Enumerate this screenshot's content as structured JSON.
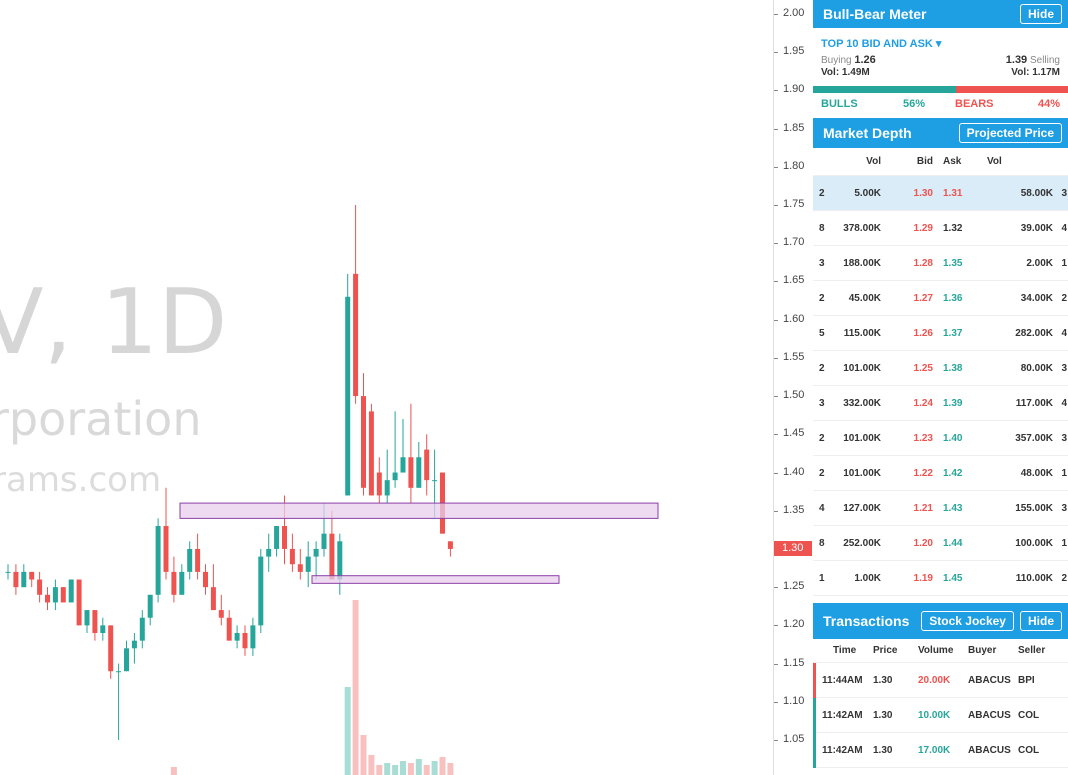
{
  "chart": {
    "watermark_title": "V, 1D",
    "watermark_subtitle": "rporation",
    "watermark_url": "rams.com",
    "last_price_marker": "1.30",
    "colors": {
      "up": "#26a69a",
      "down": "#ef5350",
      "up_volume": "#a8ddd6",
      "down_volume": "#f8c1c0",
      "zone_fill": "#e8cfec",
      "zone_border": "#8b3fa8"
    },
    "price_axis": [
      "2.00",
      "1.95",
      "1.90",
      "1.85",
      "1.80",
      "1.75",
      "1.70",
      "1.65",
      "1.60",
      "1.55",
      "1.50",
      "1.45",
      "1.40",
      "1.35",
      "1.30",
      "1.25",
      "1.20",
      "1.15",
      "1.10",
      "1.05"
    ]
  },
  "chart_data": {
    "type": "candlestick",
    "price_range": [
      1.05,
      2.0
    ],
    "candles": [
      {
        "o": 1.27,
        "h": 1.28,
        "l": 1.26,
        "c": 1.27
      },
      {
        "o": 1.27,
        "h": 1.28,
        "l": 1.24,
        "c": 1.25
      },
      {
        "o": 1.25,
        "h": 1.28,
        "l": 1.25,
        "c": 1.27
      },
      {
        "o": 1.27,
        "h": 1.27,
        "l": 1.25,
        "c": 1.26
      },
      {
        "o": 1.26,
        "h": 1.27,
        "l": 1.23,
        "c": 1.24
      },
      {
        "o": 1.24,
        "h": 1.25,
        "l": 1.22,
        "c": 1.23
      },
      {
        "o": 1.23,
        "h": 1.26,
        "l": 1.22,
        "c": 1.25
      },
      {
        "o": 1.25,
        "h": 1.25,
        "l": 1.23,
        "c": 1.23
      },
      {
        "o": 1.23,
        "h": 1.26,
        "l": 1.23,
        "c": 1.26
      },
      {
        "o": 1.26,
        "h": 1.26,
        "l": 1.2,
        "c": 1.2
      },
      {
        "o": 1.2,
        "h": 1.22,
        "l": 1.19,
        "c": 1.22
      },
      {
        "o": 1.22,
        "h": 1.22,
        "l": 1.18,
        "c": 1.19
      },
      {
        "o": 1.19,
        "h": 1.21,
        "l": 1.18,
        "c": 1.2
      },
      {
        "o": 1.2,
        "h": 1.2,
        "l": 1.13,
        "c": 1.14
      },
      {
        "o": 1.14,
        "h": 1.15,
        "l": 1.05,
        "c": 1.14
      },
      {
        "o": 1.14,
        "h": 1.18,
        "l": 1.14,
        "c": 1.17
      },
      {
        "o": 1.17,
        "h": 1.19,
        "l": 1.15,
        "c": 1.18
      },
      {
        "o": 1.18,
        "h": 1.22,
        "l": 1.17,
        "c": 1.21
      },
      {
        "o": 1.21,
        "h": 1.24,
        "l": 1.2,
        "c": 1.24
      },
      {
        "o": 1.24,
        "h": 1.34,
        "l": 1.23,
        "c": 1.33
      },
      {
        "o": 1.33,
        "h": 1.38,
        "l": 1.26,
        "c": 1.27
      },
      {
        "o": 1.27,
        "h": 1.29,
        "l": 1.23,
        "c": 1.24
      },
      {
        "o": 1.24,
        "h": 1.28,
        "l": 1.24,
        "c": 1.27
      },
      {
        "o": 1.27,
        "h": 1.31,
        "l": 1.26,
        "c": 1.3
      },
      {
        "o": 1.3,
        "h": 1.32,
        "l": 1.26,
        "c": 1.27
      },
      {
        "o": 1.27,
        "h": 1.28,
        "l": 1.24,
        "c": 1.25
      },
      {
        "o": 1.25,
        "h": 1.28,
        "l": 1.22,
        "c": 1.22
      },
      {
        "o": 1.22,
        "h": 1.24,
        "l": 1.2,
        "c": 1.21
      },
      {
        "o": 1.21,
        "h": 1.22,
        "l": 1.18,
        "c": 1.18
      },
      {
        "o": 1.18,
        "h": 1.2,
        "l": 1.17,
        "c": 1.19
      },
      {
        "o": 1.19,
        "h": 1.2,
        "l": 1.16,
        "c": 1.17
      },
      {
        "o": 1.17,
        "h": 1.21,
        "l": 1.16,
        "c": 1.2
      },
      {
        "o": 1.2,
        "h": 1.3,
        "l": 1.19,
        "c": 1.29
      },
      {
        "o": 1.29,
        "h": 1.32,
        "l": 1.27,
        "c": 1.3
      },
      {
        "o": 1.3,
        "h": 1.33,
        "l": 1.29,
        "c": 1.33
      },
      {
        "o": 1.33,
        "h": 1.37,
        "l": 1.28,
        "c": 1.3
      },
      {
        "o": 1.3,
        "h": 1.32,
        "l": 1.27,
        "c": 1.28
      },
      {
        "o": 1.28,
        "h": 1.3,
        "l": 1.26,
        "c": 1.27
      },
      {
        "o": 1.27,
        "h": 1.31,
        "l": 1.25,
        "c": 1.29
      },
      {
        "o": 1.29,
        "h": 1.31,
        "l": 1.26,
        "c": 1.3
      },
      {
        "o": 1.3,
        "h": 1.36,
        "l": 1.29,
        "c": 1.32
      },
      {
        "o": 1.32,
        "h": 1.35,
        "l": 1.26,
        "c": 1.26
      },
      {
        "o": 1.26,
        "h": 1.32,
        "l": 1.24,
        "c": 1.31
      },
      {
        "o": 1.37,
        "h": 1.66,
        "l": 1.37,
        "c": 1.63
      },
      {
        "o": 1.66,
        "h": 1.75,
        "l": 1.49,
        "c": 1.5
      },
      {
        "o": 1.5,
        "h": 1.53,
        "l": 1.37,
        "c": 1.38
      },
      {
        "o": 1.48,
        "h": 1.49,
        "l": 1.37,
        "c": 1.37
      },
      {
        "o": 1.4,
        "h": 1.42,
        "l": 1.36,
        "c": 1.37
      },
      {
        "o": 1.37,
        "h": 1.43,
        "l": 1.36,
        "c": 1.39
      },
      {
        "o": 1.39,
        "h": 1.48,
        "l": 1.38,
        "c": 1.4
      },
      {
        "o": 1.4,
        "h": 1.47,
        "l": 1.4,
        "c": 1.42
      },
      {
        "o": 1.42,
        "h": 1.49,
        "l": 1.36,
        "c": 1.38
      },
      {
        "o": 1.38,
        "h": 1.44,
        "l": 1.38,
        "c": 1.42
      },
      {
        "o": 1.43,
        "h": 1.45,
        "l": 1.37,
        "c": 1.39
      },
      {
        "o": 1.39,
        "h": 1.43,
        "l": 1.34,
        "c": 1.39
      },
      {
        "o": 1.4,
        "h": 1.4,
        "l": 1.32,
        "c": 1.32
      },
      {
        "o": 1.31,
        "h": 1.31,
        "l": 1.29,
        "c": 1.3
      }
    ],
    "zones": [
      {
        "top": 1.36,
        "bottom": 1.34
      },
      {
        "top": 1.265,
        "bottom": 1.255
      }
    ]
  },
  "bull_bear": {
    "title": "Bull-Bear Meter",
    "hide_label": "Hide",
    "dropdown_label": "TOP 10 BID AND ASK",
    "buying_label": "Buying",
    "buying_value": "1.26",
    "selling_value": "1.39",
    "selling_label": "Selling",
    "buy_vol": "Vol: 1.49M",
    "sell_vol": "Vol: 1.17M",
    "bulls_label": "BULLS",
    "bulls_pct": "56%",
    "bears_label": "BEARS",
    "bears_pct": "44%",
    "bulls_fraction": 0.56
  },
  "market_depth": {
    "title": "Market Depth",
    "projected_price_label": "Projected Price",
    "columns": {
      "vol": "Vol",
      "bid": "Bid",
      "ask": "Ask",
      "vol2": "Vol"
    },
    "rows": [
      {
        "n1": "2",
        "vol": "5.00K",
        "bid": "1.30",
        "ask": "1.31",
        "vol2": "58.00K",
        "n2": "3"
      },
      {
        "n1": "8",
        "vol": "378.00K",
        "bid": "1.29",
        "ask": "1.32",
        "vol2": "39.00K",
        "n2": "4"
      },
      {
        "n1": "3",
        "vol": "188.00K",
        "bid": "1.28",
        "ask": "1.35",
        "vol2": "2.00K",
        "n2": "1"
      },
      {
        "n1": "2",
        "vol": "45.00K",
        "bid": "1.27",
        "ask": "1.36",
        "vol2": "34.00K",
        "n2": "2"
      },
      {
        "n1": "5",
        "vol": "115.00K",
        "bid": "1.26",
        "ask": "1.37",
        "vol2": "282.00K",
        "n2": "4"
      },
      {
        "n1": "2",
        "vol": "101.00K",
        "bid": "1.25",
        "ask": "1.38",
        "vol2": "80.00K",
        "n2": "3"
      },
      {
        "n1": "3",
        "vol": "332.00K",
        "bid": "1.24",
        "ask": "1.39",
        "vol2": "117.00K",
        "n2": "4"
      },
      {
        "n1": "2",
        "vol": "101.00K",
        "bid": "1.23",
        "ask": "1.40",
        "vol2": "357.00K",
        "n2": "3"
      },
      {
        "n1": "2",
        "vol": "101.00K",
        "bid": "1.22",
        "ask": "1.42",
        "vol2": "48.00K",
        "n2": "1"
      },
      {
        "n1": "4",
        "vol": "127.00K",
        "bid": "1.21",
        "ask": "1.43",
        "vol2": "155.00K",
        "n2": "3"
      },
      {
        "n1": "8",
        "vol": "252.00K",
        "bid": "1.20",
        "ask": "1.44",
        "vol2": "100.00K",
        "n2": "1"
      },
      {
        "n1": "1",
        "vol": "1.00K",
        "bid": "1.19",
        "ask": "1.45",
        "vol2": "110.00K",
        "n2": "2"
      }
    ]
  },
  "transactions": {
    "title": "Transactions",
    "stock_jockey_label": "Stock Jockey",
    "hide_label": "Hide",
    "columns": {
      "time": "Time",
      "price": "Price",
      "volume": "Volume",
      "buyer": "Buyer",
      "seller": "Seller"
    },
    "rows": [
      {
        "time": "11:44AM",
        "price": "1.30",
        "volume": "20.00K",
        "buyer": "ABACUS",
        "seller": "BPI",
        "side": "sell"
      },
      {
        "time": "11:42AM",
        "price": "1.30",
        "volume": "10.00K",
        "buyer": "ABACUS",
        "seller": "COL",
        "side": "buy"
      },
      {
        "time": "11:42AM",
        "price": "1.30",
        "volume": "17.00K",
        "buyer": "ABACUS",
        "seller": "COL",
        "side": "buy"
      }
    ]
  }
}
